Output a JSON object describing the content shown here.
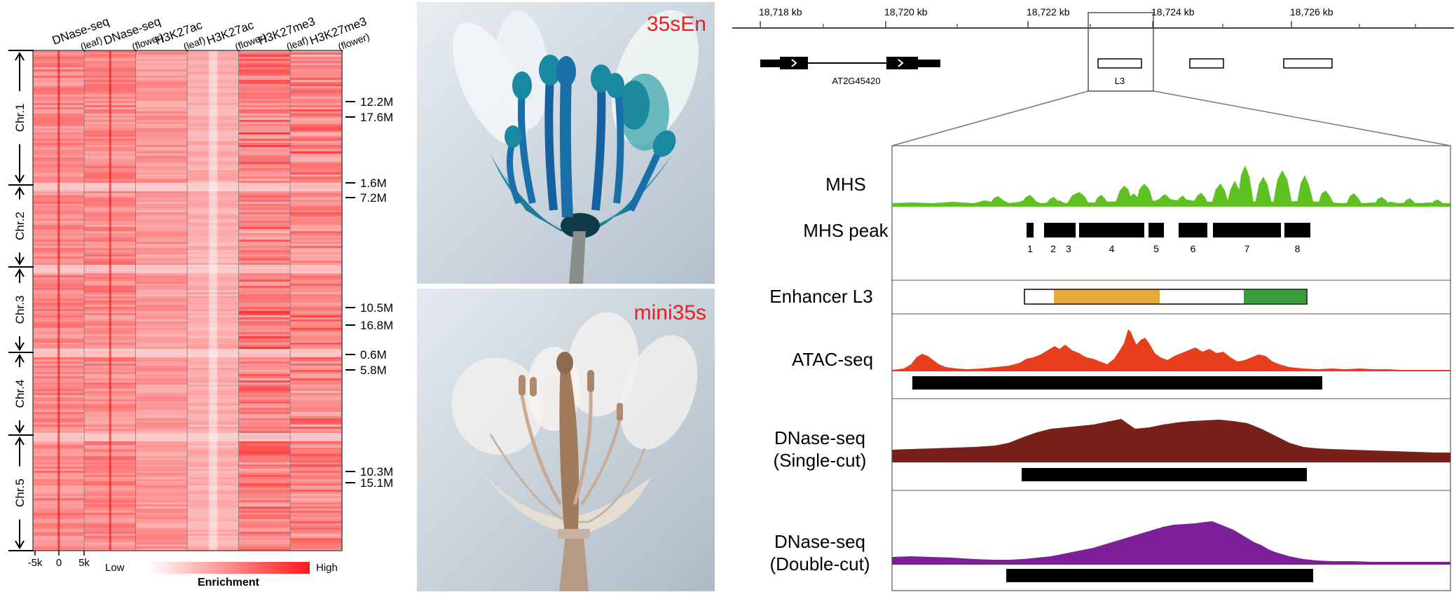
{
  "heatmap": {
    "columns": [
      {
        "mark": "DNase-seq",
        "tissue": "(leaf)"
      },
      {
        "mark": "DNase-seq",
        "tissue": "(flower)"
      },
      {
        "mark": "H3K27ac",
        "tissue": "(leaf)"
      },
      {
        "mark": "H3K27ac",
        "tissue": "(flower)"
      },
      {
        "mark": "H3K27me3",
        "tissue": "(leaf)"
      },
      {
        "mark": "H3K27me3",
        "tissue": "(flower)"
      }
    ],
    "chromosomes": [
      "Chr.1",
      "Chr.2",
      "Chr.3",
      "Chr.4",
      "Chr.5"
    ],
    "positions": [
      {
        "chr": 1,
        "label": "12.2M"
      },
      {
        "chr": 1,
        "label": "17.6M"
      },
      {
        "chr": 2,
        "label": "1.6M"
      },
      {
        "chr": 2,
        "label": "7.2M"
      },
      {
        "chr": 3,
        "label": "10.5M"
      },
      {
        "chr": 3,
        "label": "16.8M"
      },
      {
        "chr": 4,
        "label": "0.6M"
      },
      {
        "chr": 4,
        "label": "5.8M"
      },
      {
        "chr": 5,
        "label": "10.3M"
      },
      {
        "chr": 5,
        "label": "15.1M"
      }
    ],
    "x_ticks": [
      "-5k",
      "0",
      "5k"
    ],
    "legend": {
      "low": "Low",
      "high": "High",
      "title": "Enrichment"
    },
    "colors": {
      "high": "#ff1a1a",
      "low": "#ffffff"
    }
  },
  "photos": {
    "top_label": "35sEn",
    "bottom_label": "mini35s",
    "label_color": "#e8201e"
  },
  "browser": {
    "coords": [
      "18,718 kb",
      "18,720 kb",
      "18,722 kb",
      "18,724 kb",
      "18,726 kb"
    ],
    "gene_name": "AT2G45420",
    "region_label": "L3",
    "tracks": {
      "mhs": "MHS",
      "mhs_peak": "MHS peak",
      "enhancer": "Enhancer L3",
      "atac": "ATAC-seq",
      "dnase_single": [
        "DNase-seq",
        "(Single-cut)"
      ],
      "dnase_double": [
        "DNase-seq",
        "(Double-cut)"
      ]
    },
    "peak_numbers": [
      "1",
      "2",
      "3",
      "4",
      "5",
      "6",
      "7",
      "8"
    ],
    "colors": {
      "mhs": "#5cc121",
      "atac": "#e83e1c",
      "single_cut": "#7a201b",
      "double_cut": "#7d1f99",
      "enhancer_left": "#e8aa3a",
      "enhancer_right": "#3a9e3a"
    }
  }
}
